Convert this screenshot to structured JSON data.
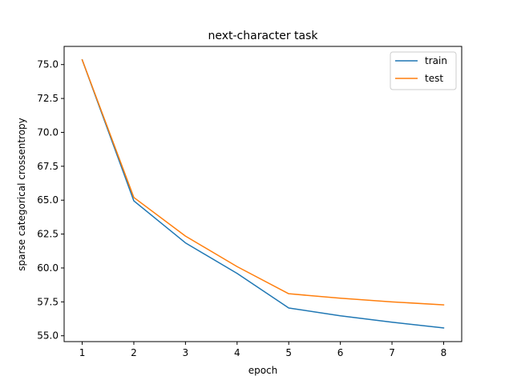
{
  "chart_data": {
    "type": "line",
    "title": "next-character task",
    "xlabel": "epoch",
    "ylabel": "sparse categorical crossentropy",
    "x": [
      1,
      2,
      3,
      4,
      5,
      6,
      7,
      8
    ],
    "xlim": [
      0.65,
      8.35
    ],
    "ylim": [
      54.57,
      76.34
    ],
    "xticks": [
      1,
      2,
      3,
      4,
      5,
      6,
      7,
      8
    ],
    "yticks": [
      55.0,
      57.5,
      60.0,
      62.5,
      65.0,
      67.5,
      70.0,
      72.5,
      75.0
    ],
    "ytick_labels": [
      "55.0",
      "57.5",
      "60.0",
      "62.5",
      "65.0",
      "67.5",
      "70.0",
      "72.5",
      "75.0"
    ],
    "grid": false,
    "legend_position": "top-right",
    "series": [
      {
        "name": "train",
        "color": "#1f77b4",
        "values": [
          75.35,
          64.95,
          61.85,
          59.6,
          57.05,
          56.47,
          56.0,
          55.58
        ]
      },
      {
        "name": "test",
        "color": "#ff7f0e",
        "values": [
          75.35,
          65.2,
          62.35,
          60.1,
          58.1,
          57.77,
          57.5,
          57.28
        ]
      }
    ]
  }
}
